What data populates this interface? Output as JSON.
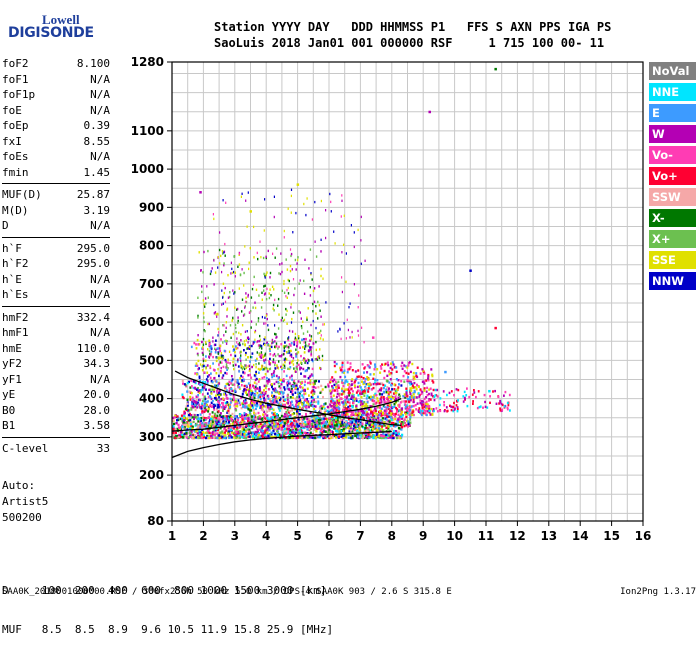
{
  "logo": {
    "line1": "Lowell",
    "line2": "DIGISONDE"
  },
  "header": {
    "line1": "Station YYYY DAY   DDD HHMMSS P1   FFS S AXN PPS IGA PS",
    "line2": "SaoLuis 2018 Jan01 001 000000 RSF     1 715 100 00- 11"
  },
  "params_groups": [
    [
      [
        "foF2",
        "8.100"
      ],
      [
        "foF1",
        "N/A"
      ],
      [
        "foF1p",
        "N/A"
      ],
      [
        "foE",
        "N/A"
      ],
      [
        "foEp",
        "0.39"
      ],
      [
        "fxI",
        "8.55"
      ],
      [
        "foEs",
        "N/A"
      ],
      [
        "fmin",
        "1.45"
      ]
    ],
    [
      [
        "MUF(D)",
        "25.87"
      ],
      [
        "M(D)",
        "3.19"
      ],
      [
        "D",
        "N/A"
      ]
    ],
    [
      [
        "h`F",
        "295.0"
      ],
      [
        "h`F2",
        "295.0"
      ],
      [
        "h`E",
        "N/A"
      ],
      [
        "h`Es",
        "N/A"
      ]
    ],
    [
      [
        "hmF2",
        "332.4"
      ],
      [
        "hmF1",
        "N/A"
      ],
      [
        "hmE",
        "110.0"
      ],
      [
        "yF2",
        "34.3"
      ],
      [
        "yF1",
        "N/A"
      ],
      [
        "yE",
        "20.0"
      ],
      [
        "B0",
        "28.0"
      ],
      [
        "B1",
        "3.58"
      ]
    ],
    [
      [
        "C-level",
        "33"
      ]
    ]
  ],
  "auto": {
    "l1": "Auto:",
    "l2": "Artist5",
    "l3": "500200"
  },
  "legend": [
    {
      "label": "NoVal",
      "color": "#808080"
    },
    {
      "label": "NNE",
      "color": "#00e5ff"
    },
    {
      "label": "E",
      "color": "#3d9bff"
    },
    {
      "label": "W",
      "color": "#b400b4"
    },
    {
      "label": "Vo-",
      "color": "#ff3cb4"
    },
    {
      "label": "Vo+",
      "color": "#ff0032"
    },
    {
      "label": "SSW",
      "color": "#f5a8a8"
    },
    {
      "label": "X-",
      "color": "#007800"
    },
    {
      "label": "X+",
      "color": "#6cc050"
    },
    {
      "label": "SSE",
      "color": "#e0e000"
    },
    {
      "label": "NNW",
      "color": "#0000c8"
    }
  ],
  "dmuf": {
    "d_line": "D     100  200  400  600  800 1000 1500 3000 [km]",
    "muf_line": "MUF   8.5  8.5  8.9  9.6 10.5 11.9 15.8 25.9 [MHz]"
  },
  "footer": {
    "left": "SAA0K_2018001000000.RSF / 300fx256h 50 kHz 5.0 km / DPS-4 SAA0K 903 / 2.6 S 315.8 E",
    "right": "Ion2Png 1.3.17"
  },
  "chart_data": {
    "type": "scatter",
    "title": "",
    "xlabel": "",
    "ylabel": "",
    "xlim": [
      1,
      16
    ],
    "ylim": [
      80,
      1280
    ],
    "x_ticks": [
      1,
      2,
      3,
      4,
      5,
      6,
      7,
      8,
      9,
      10,
      11,
      12,
      13,
      14,
      15,
      16
    ],
    "y_ticks": [
      80,
      200,
      300,
      400,
      500,
      600,
      700,
      800,
      900,
      1000,
      1100,
      1280
    ],
    "grid": true,
    "legend_position": "right",
    "traces": [
      {
        "x": [
          1.0,
          1.5,
          2.0,
          2.5,
          3.0,
          3.5,
          4.0,
          4.5,
          5.0,
          5.5,
          6.0,
          6.5,
          7.0,
          7.5,
          8.0
        ],
        "y": [
          246,
          262,
          272,
          280,
          287,
          292,
          296,
          299,
          302,
          304,
          306,
          308,
          310,
          312,
          314
        ]
      },
      {
        "x": [
          1.0,
          1.5,
          2.0,
          2.5,
          3.0,
          3.5,
          4.0,
          4.5,
          5.0,
          5.5,
          6.0,
          6.5,
          7.0,
          7.5,
          8.0,
          8.3
        ],
        "y": [
          315,
          318,
          320,
          325,
          330,
          335,
          340,
          345,
          350,
          355,
          360,
          366,
          372,
          380,
          390,
          400
        ]
      },
      {
        "x": [
          1.1,
          1.5,
          2.0,
          2.5,
          3.0,
          3.5,
          4.0,
          4.5,
          5.0,
          5.5,
          6.0,
          6.5,
          7.0,
          7.5,
          8.0,
          8.3
        ],
        "y": [
          472,
          455,
          440,
          425,
          410,
          398,
          388,
          380,
          372,
          365,
          358,
          350,
          345,
          338,
          332,
          330
        ]
      }
    ],
    "points_sample": [
      {
        "x": 11.3,
        "y": 1262,
        "o": "X-"
      },
      {
        "x": 9.2,
        "y": 1150,
        "o": "W"
      },
      {
        "x": 10.5,
        "y": 735,
        "o": "NNW"
      },
      {
        "x": 11.3,
        "y": 585,
        "o": "Vo+"
      },
      {
        "x": 5.0,
        "y": 960,
        "o": "SSE"
      },
      {
        "x": 1.9,
        "y": 940,
        "o": "W"
      },
      {
        "x": 3.5,
        "y": 890,
        "o": "SSE"
      },
      {
        "x": 7.4,
        "y": 560,
        "o": "Vo-"
      },
      {
        "x": 9.7,
        "y": 470,
        "o": "E"
      },
      {
        "x": 11.1,
        "y": 420,
        "o": "NNE"
      }
    ]
  }
}
